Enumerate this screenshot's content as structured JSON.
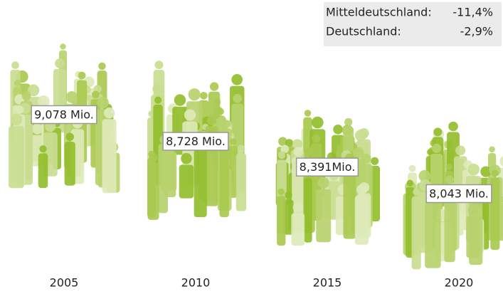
{
  "chart_data": {
    "type": "pictograph",
    "categories": [
      "2005",
      "2010",
      "2015",
      "2020"
    ],
    "values": [
      9.078,
      8.728,
      8.391,
      8.043
    ],
    "value_labels": [
      "9,078 Mio.",
      "8,728 Mio.",
      "8,391Mio.",
      "8,043 Mio."
    ],
    "colors": [
      "#c9dd91",
      "#a9c94f",
      "#dde9b8",
      "#93be2c",
      "#b7d36e"
    ],
    "summary": [
      {
        "name": "Mitteldeutschland:",
        "label": "-11,4%",
        "color": "#3aae4e"
      },
      {
        "name": "Deutschland:",
        "label": "-2,9%",
        "color": "#1a7a8c"
      }
    ]
  }
}
